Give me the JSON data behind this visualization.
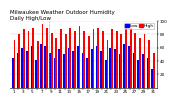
{
  "title": "Milwaukee Weather Outdoor Humidity",
  "subtitle": "Daily High/Low",
  "legend_high": "High",
  "legend_low": "Low",
  "color_high": "#ff0000",
  "color_low": "#0000ff",
  "background_color": "#ffffff",
  "plot_bg": "#ffffff",
  "ylim": [
    0,
    100
  ],
  "yticks": [
    20,
    40,
    60,
    80,
    100
  ],
  "ytick_labels": [
    "20",
    "40",
    "60",
    "80",
    "100"
  ],
  "n_days": 31,
  "high": [
    72,
    80,
    88,
    85,
    90,
    70,
    95,
    90,
    82,
    75,
    88,
    80,
    90,
    85,
    92,
    85,
    78,
    88,
    90,
    85,
    72,
    88,
    85,
    80,
    95,
    90,
    82,
    75,
    80,
    72,
    52
  ],
  "low": [
    45,
    52,
    60,
    55,
    62,
    42,
    65,
    62,
    52,
    45,
    58,
    50,
    60,
    55,
    62,
    52,
    45,
    58,
    62,
    55,
    42,
    60,
    58,
    50,
    65,
    62,
    52,
    42,
    50,
    45,
    28
  ],
  "vline_pos": 8.5,
  "vline_color": "#888888",
  "bar_width": 0.38,
  "title_fontsize": 4.0,
  "tick_fontsize": 3.0,
  "legend_fontsize": 3.2,
  "xtick_labels": [
    "1",
    "",
    "3",
    "",
    "5",
    "",
    "7",
    "",
    "9",
    "",
    "11",
    "",
    "13",
    "",
    "15",
    "",
    "17",
    "",
    "19",
    "",
    "21",
    "",
    "23",
    "",
    "25",
    "",
    "27",
    "",
    "29",
    "",
    "31"
  ]
}
